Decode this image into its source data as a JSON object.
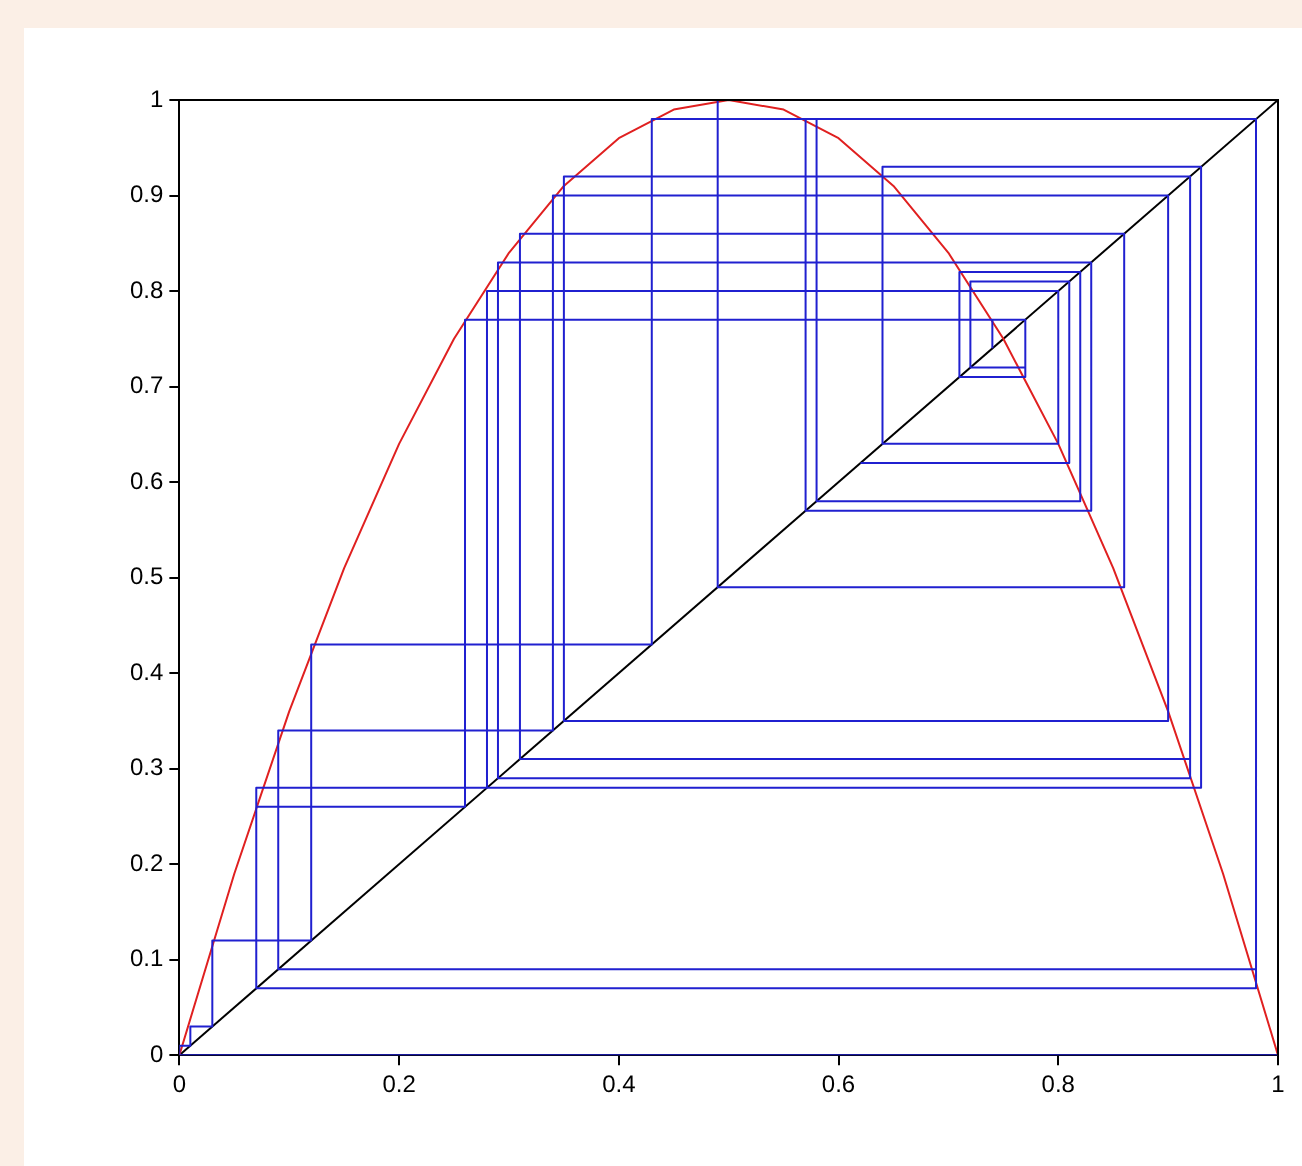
{
  "chart_data": {
    "type": "line",
    "xlim": [
      0,
      1
    ],
    "ylim": [
      0,
      1
    ],
    "xticks": [
      0,
      0.2,
      0.4,
      0.6,
      0.8,
      1
    ],
    "yticks": [
      0,
      0.1,
      0.2,
      0.3,
      0.4,
      0.5,
      0.6,
      0.7,
      0.8,
      0.9,
      1
    ],
    "grid": false,
    "legend": false,
    "marker": "none",
    "line_style": "solid",
    "series": [
      {
        "color": "#2020d0",
        "x": [
          0.74,
          0.74,
          0.77,
          0.77,
          0.71,
          0.71,
          0.82,
          0.82,
          0.58,
          0.58,
          0.98,
          0.98,
          0.09,
          0.09,
          0.34,
          0.34,
          0.9,
          0.9,
          0.35,
          0.35,
          0.92,
          0.92,
          0.31,
          0.31,
          0.86,
          0.86,
          0.49,
          0.49,
          1.0,
          1.0,
          0.0,
          0.0,
          0.01,
          0.01,
          0.03,
          0.03,
          0.12,
          0.12,
          0.43,
          0.43,
          0.98,
          0.98,
          0.07,
          0.07,
          0.28,
          0.28,
          0.8,
          0.8,
          0.64,
          0.64,
          0.93,
          0.93,
          0.28,
          0.28,
          0.8,
          0.8,
          0.64,
          0.64,
          0.92,
          0.92,
          0.29,
          0.29,
          0.83,
          0.83,
          0.57,
          0.57,
          0.98,
          0.98,
          0.07,
          0.07,
          0.26,
          0.26,
          0.77,
          0.77,
          0.72,
          0.72,
          0.81,
          0.81,
          0.62
        ],
        "values": [
          0.74,
          0.77,
          0.77,
          0.71,
          0.71,
          0.82,
          0.82,
          0.58,
          0.58,
          0.98,
          0.98,
          0.09,
          0.09,
          0.34,
          0.34,
          0.9,
          0.9,
          0.35,
          0.35,
          0.92,
          0.92,
          0.31,
          0.31,
          0.86,
          0.86,
          0.49,
          0.49,
          1.0,
          1.0,
          0.0,
          0.0,
          0.01,
          0.01,
          0.03,
          0.03,
          0.12,
          0.12,
          0.43,
          0.43,
          0.98,
          0.98,
          0.07,
          0.07,
          0.28,
          0.28,
          0.8,
          0.8,
          0.64,
          0.64,
          0.93,
          0.93,
          0.28,
          0.28,
          0.8,
          0.8,
          0.64,
          0.64,
          0.92,
          0.92,
          0.29,
          0.29,
          0.83,
          0.83,
          0.57,
          0.57,
          0.98,
          0.98,
          0.07,
          0.07,
          0.26,
          0.26,
          0.77,
          0.77,
          0.72,
          0.72,
          0.81,
          0.81,
          0.62,
          0.62
        ]
      },
      {
        "color": "#e02020",
        "x": [
          0,
          0.05,
          0.1,
          0.15,
          0.2,
          0.25,
          0.3,
          0.35,
          0.4,
          0.45,
          0.5,
          0.55,
          0.6,
          0.65,
          0.7,
          0.75,
          0.8,
          0.85,
          0.9,
          0.95,
          1
        ],
        "values": [
          0,
          0.19,
          0.36,
          0.51,
          0.64,
          0.75,
          0.84,
          0.91,
          0.96,
          0.99,
          1,
          0.99,
          0.96,
          0.91,
          0.84,
          0.75,
          0.64,
          0.51,
          0.36,
          0.19,
          0
        ]
      },
      {
        "color": "#000000",
        "x": [
          0,
          1
        ],
        "values": [
          0,
          1
        ]
      }
    ]
  }
}
